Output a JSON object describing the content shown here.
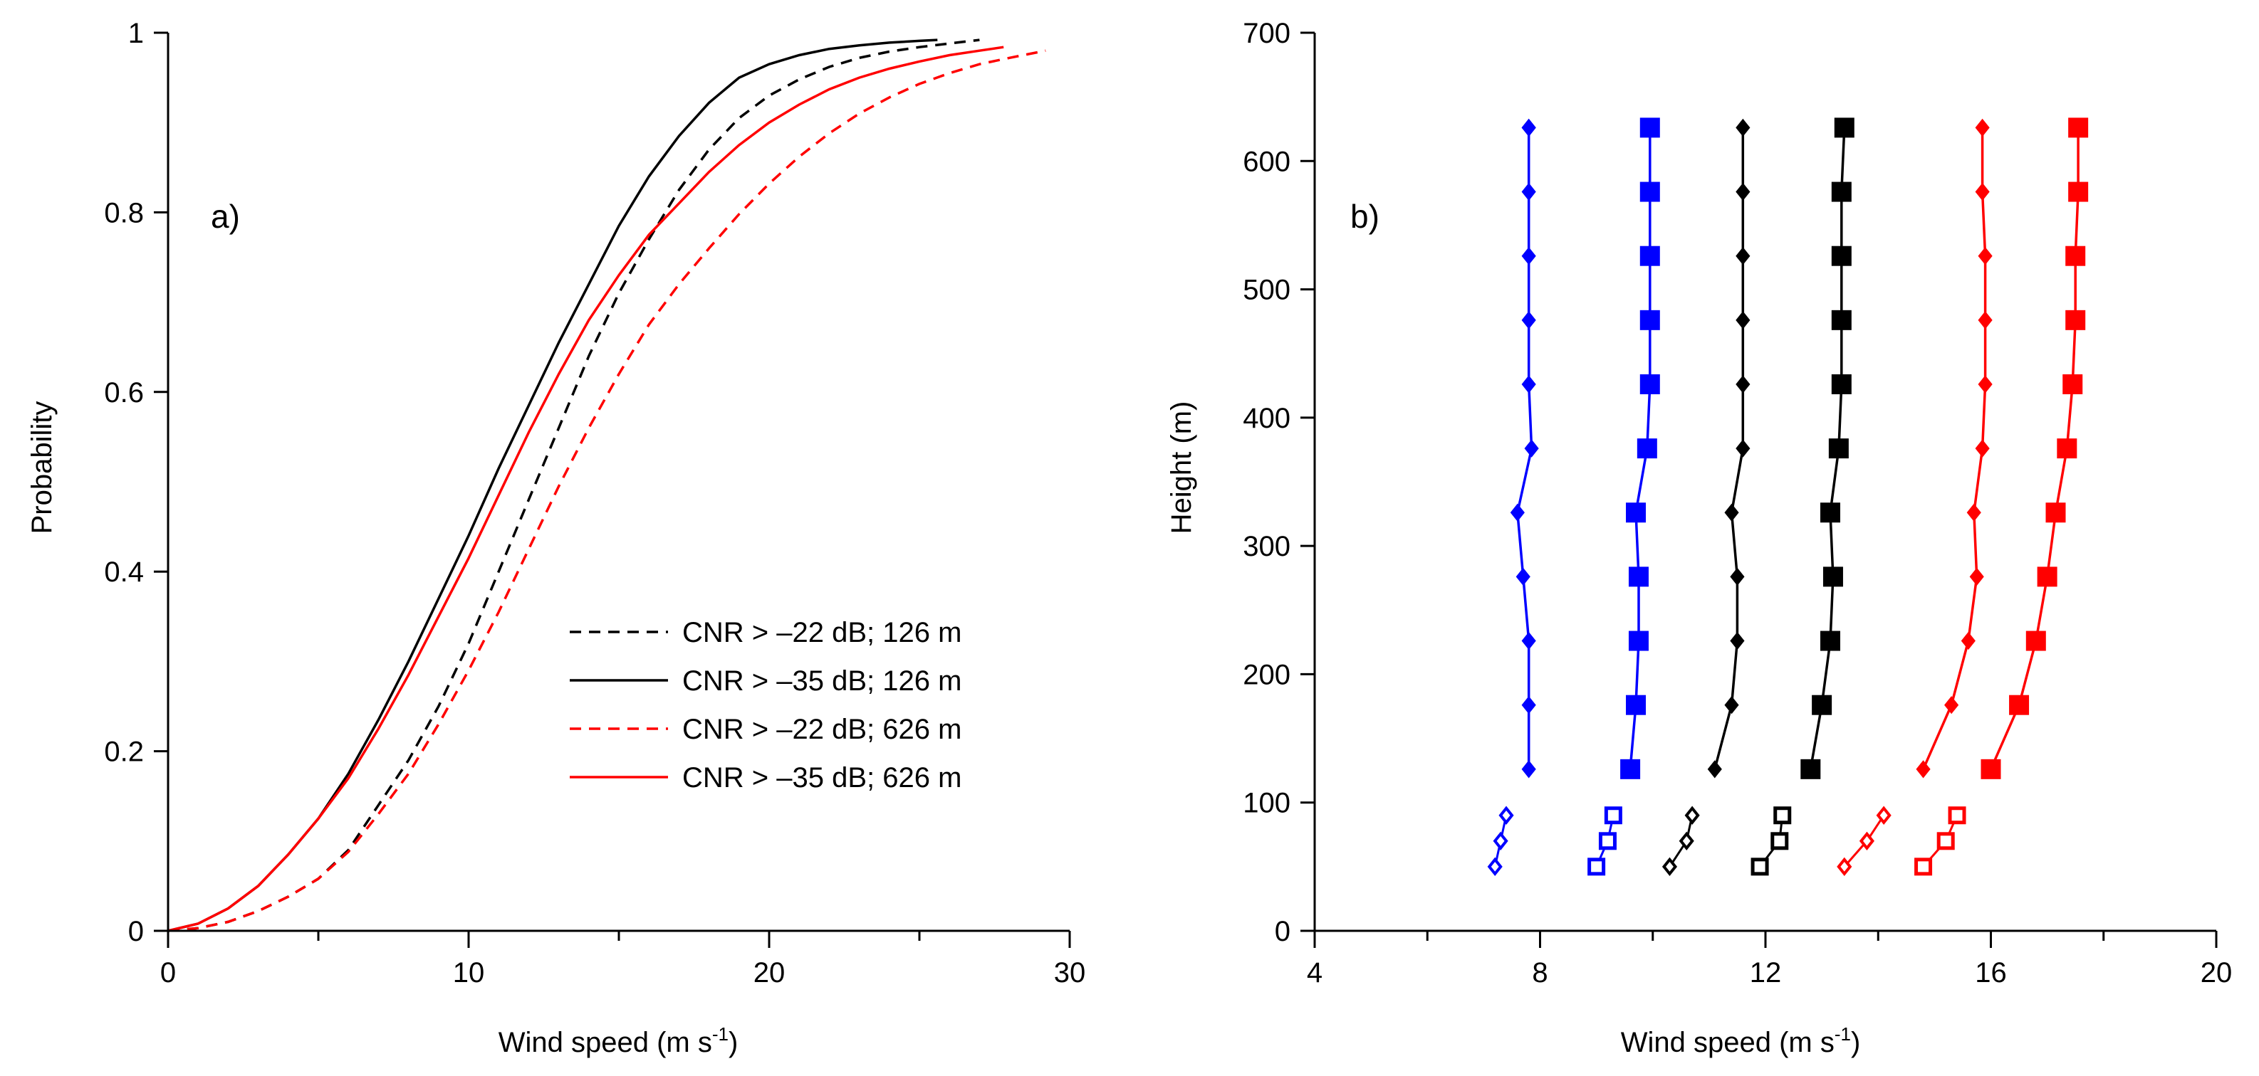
{
  "chart_data": [
    {
      "type": "line",
      "panel_label": "a)",
      "xlabel_main": "Wind speed (m s",
      "xlabel_sup": "-1",
      "xlabel_end": ")",
      "ylabel": "Probability",
      "xlim": [
        0,
        30
      ],
      "ylim": [
        0,
        1
      ],
      "xticks": [
        0,
        10,
        20,
        30
      ],
      "xtick_labels": [
        "0",
        "10",
        "20",
        "30"
      ],
      "xminor": [
        5,
        15,
        25
      ],
      "yticks": [
        0,
        0.2,
        0.4,
        0.6,
        0.8,
        1
      ],
      "ytick_labels": [
        "0",
        "0.2",
        "0.4",
        "0.6",
        "0.8",
        "1"
      ],
      "legend_position": "lower-right",
      "series": [
        {
          "name": "CNR > –22 dB; 126 m",
          "color": "#000000",
          "dash": "dashed",
          "x": [
            0,
            1,
            2,
            3,
            4,
            5,
            6,
            7,
            8,
            9,
            10,
            11,
            12,
            13,
            14,
            15,
            16,
            17,
            18,
            19,
            20,
            21,
            22,
            23,
            24,
            25,
            26,
            27
          ],
          "y": [
            0,
            0.003,
            0.01,
            0.022,
            0.038,
            0.058,
            0.09,
            0.14,
            0.19,
            0.25,
            0.32,
            0.4,
            0.48,
            0.56,
            0.64,
            0.71,
            0.77,
            0.825,
            0.87,
            0.905,
            0.93,
            0.948,
            0.962,
            0.972,
            0.979,
            0.984,
            0.988,
            0.992
          ]
        },
        {
          "name": "CNR > –35 dB; 126 m",
          "color": "#000000",
          "dash": "solid",
          "x": [
            0,
            1,
            2,
            3,
            4,
            5,
            6,
            7,
            8,
            9,
            10,
            11,
            12,
            13,
            14,
            15,
            16,
            17,
            18,
            19,
            20,
            21,
            22,
            23,
            24,
            25,
            25.6
          ],
          "y": [
            0,
            0.008,
            0.025,
            0.05,
            0.085,
            0.125,
            0.175,
            0.235,
            0.3,
            0.37,
            0.44,
            0.515,
            0.585,
            0.655,
            0.72,
            0.785,
            0.84,
            0.885,
            0.922,
            0.95,
            0.965,
            0.975,
            0.982,
            0.986,
            0.989,
            0.991,
            0.992
          ]
        },
        {
          "name": "CNR > –22 dB; 626 m",
          "color": "#ff0000",
          "dash": "dashed",
          "x": [
            0,
            1,
            2,
            3,
            4,
            5,
            6,
            7,
            8,
            9,
            10,
            11,
            12,
            13,
            14,
            15,
            16,
            17,
            18,
            19,
            20,
            21,
            22,
            23,
            24,
            25,
            26,
            27,
            28,
            29.2
          ],
          "y": [
            0,
            0.003,
            0.01,
            0.022,
            0.038,
            0.058,
            0.088,
            0.13,
            0.175,
            0.23,
            0.29,
            0.355,
            0.425,
            0.495,
            0.56,
            0.62,
            0.675,
            0.72,
            0.76,
            0.798,
            0.832,
            0.862,
            0.888,
            0.91,
            0.928,
            0.943,
            0.955,
            0.965,
            0.972,
            0.98
          ]
        },
        {
          "name": "CNR > –35 dB; 626 m",
          "color": "#ff0000",
          "dash": "solid",
          "x": [
            0,
            1,
            2,
            3,
            4,
            5,
            6,
            7,
            8,
            9,
            10,
            11,
            12,
            13,
            14,
            15,
            16,
            17,
            18,
            19,
            20,
            21,
            22,
            23,
            24,
            25,
            26,
            27,
            27.8
          ],
          "y": [
            0,
            0.008,
            0.025,
            0.05,
            0.085,
            0.125,
            0.17,
            0.225,
            0.285,
            0.35,
            0.415,
            0.485,
            0.555,
            0.62,
            0.68,
            0.73,
            0.775,
            0.81,
            0.845,
            0.875,
            0.9,
            0.92,
            0.937,
            0.95,
            0.96,
            0.968,
            0.975,
            0.98,
            0.984
          ]
        }
      ]
    },
    {
      "type": "line",
      "panel_label": "b)",
      "xlabel_main": "Wind speed (m s",
      "xlabel_sup": "-1",
      "xlabel_end": ")",
      "ylabel": "Height (m)",
      "xlim": [
        4,
        20
      ],
      "ylim": [
        0,
        700
      ],
      "xticks": [
        4,
        8,
        12,
        16,
        20
      ],
      "xtick_labels": [
        "4",
        "8",
        "12",
        "16",
        "20"
      ],
      "xminor": [
        6,
        10,
        14,
        18
      ],
      "yticks": [
        0,
        100,
        200,
        300,
        400,
        500,
        600,
        700
      ],
      "ytick_labels": [
        "0",
        "100",
        "200",
        "300",
        "400",
        "500",
        "600",
        "700"
      ],
      "series": [
        {
          "name": "blue diamonds",
          "color": "#0000ff",
          "marker": "diamond",
          "open_below": 100,
          "x": [
            7.2,
            7.3,
            7.4,
            7.8,
            7.8,
            7.8,
            7.7,
            7.6,
            7.85,
            7.8,
            7.8,
            7.8,
            7.8,
            7.8,
            7.8
          ],
          "y": [
            50,
            70,
            90,
            126,
            176,
            226,
            276,
            326,
            376,
            426,
            476,
            526,
            576,
            626,
            626
          ]
        },
        {
          "name": "blue squares",
          "color": "#0000ff",
          "marker": "square",
          "open_below": 100,
          "x": [
            9.0,
            9.2,
            9.3,
            9.6,
            9.7,
            9.75,
            9.75,
            9.7,
            9.9,
            9.95,
            9.95,
            9.95,
            9.95,
            9.95
          ],
          "y": [
            50,
            70,
            90,
            126,
            176,
            226,
            276,
            326,
            376,
            426,
            476,
            526,
            576,
            626
          ]
        },
        {
          "name": "black diamonds",
          "color": "#000000",
          "marker": "diamond",
          "open_below": 100,
          "x": [
            10.3,
            10.6,
            10.7,
            11.1,
            11.4,
            11.5,
            11.5,
            11.4,
            11.6,
            11.6,
            11.6,
            11.6,
            11.6,
            11.6
          ],
          "y": [
            50,
            70,
            90,
            126,
            176,
            226,
            276,
            326,
            376,
            426,
            476,
            526,
            576,
            626
          ]
        },
        {
          "name": "black squares",
          "color": "#000000",
          "marker": "square",
          "open_below": 100,
          "x": [
            11.9,
            12.25,
            12.3,
            12.8,
            13.0,
            13.15,
            13.2,
            13.15,
            13.3,
            13.35,
            13.35,
            13.35,
            13.35,
            13.4
          ],
          "y": [
            50,
            70,
            90,
            126,
            176,
            226,
            276,
            326,
            376,
            426,
            476,
            526,
            576,
            626
          ]
        },
        {
          "name": "red diamonds",
          "color": "#ff0000",
          "marker": "diamond",
          "open_below": 100,
          "x": [
            13.4,
            13.8,
            14.1,
            14.8,
            15.3,
            15.6,
            15.75,
            15.7,
            15.85,
            15.9,
            15.9,
            15.9,
            15.85,
            15.85
          ],
          "y": [
            50,
            70,
            90,
            126,
            176,
            226,
            276,
            326,
            376,
            426,
            476,
            526,
            576,
            626
          ]
        },
        {
          "name": "red squares",
          "color": "#ff0000",
          "marker": "square",
          "open_below": 100,
          "x": [
            14.8,
            15.2,
            15.4,
            16.0,
            16.5,
            16.8,
            17.0,
            17.15,
            17.35,
            17.45,
            17.5,
            17.5,
            17.55,
            17.55
          ],
          "y": [
            50,
            70,
            90,
            126,
            176,
            226,
            276,
            326,
            376,
            426,
            476,
            526,
            576,
            626
          ]
        }
      ]
    }
  ]
}
